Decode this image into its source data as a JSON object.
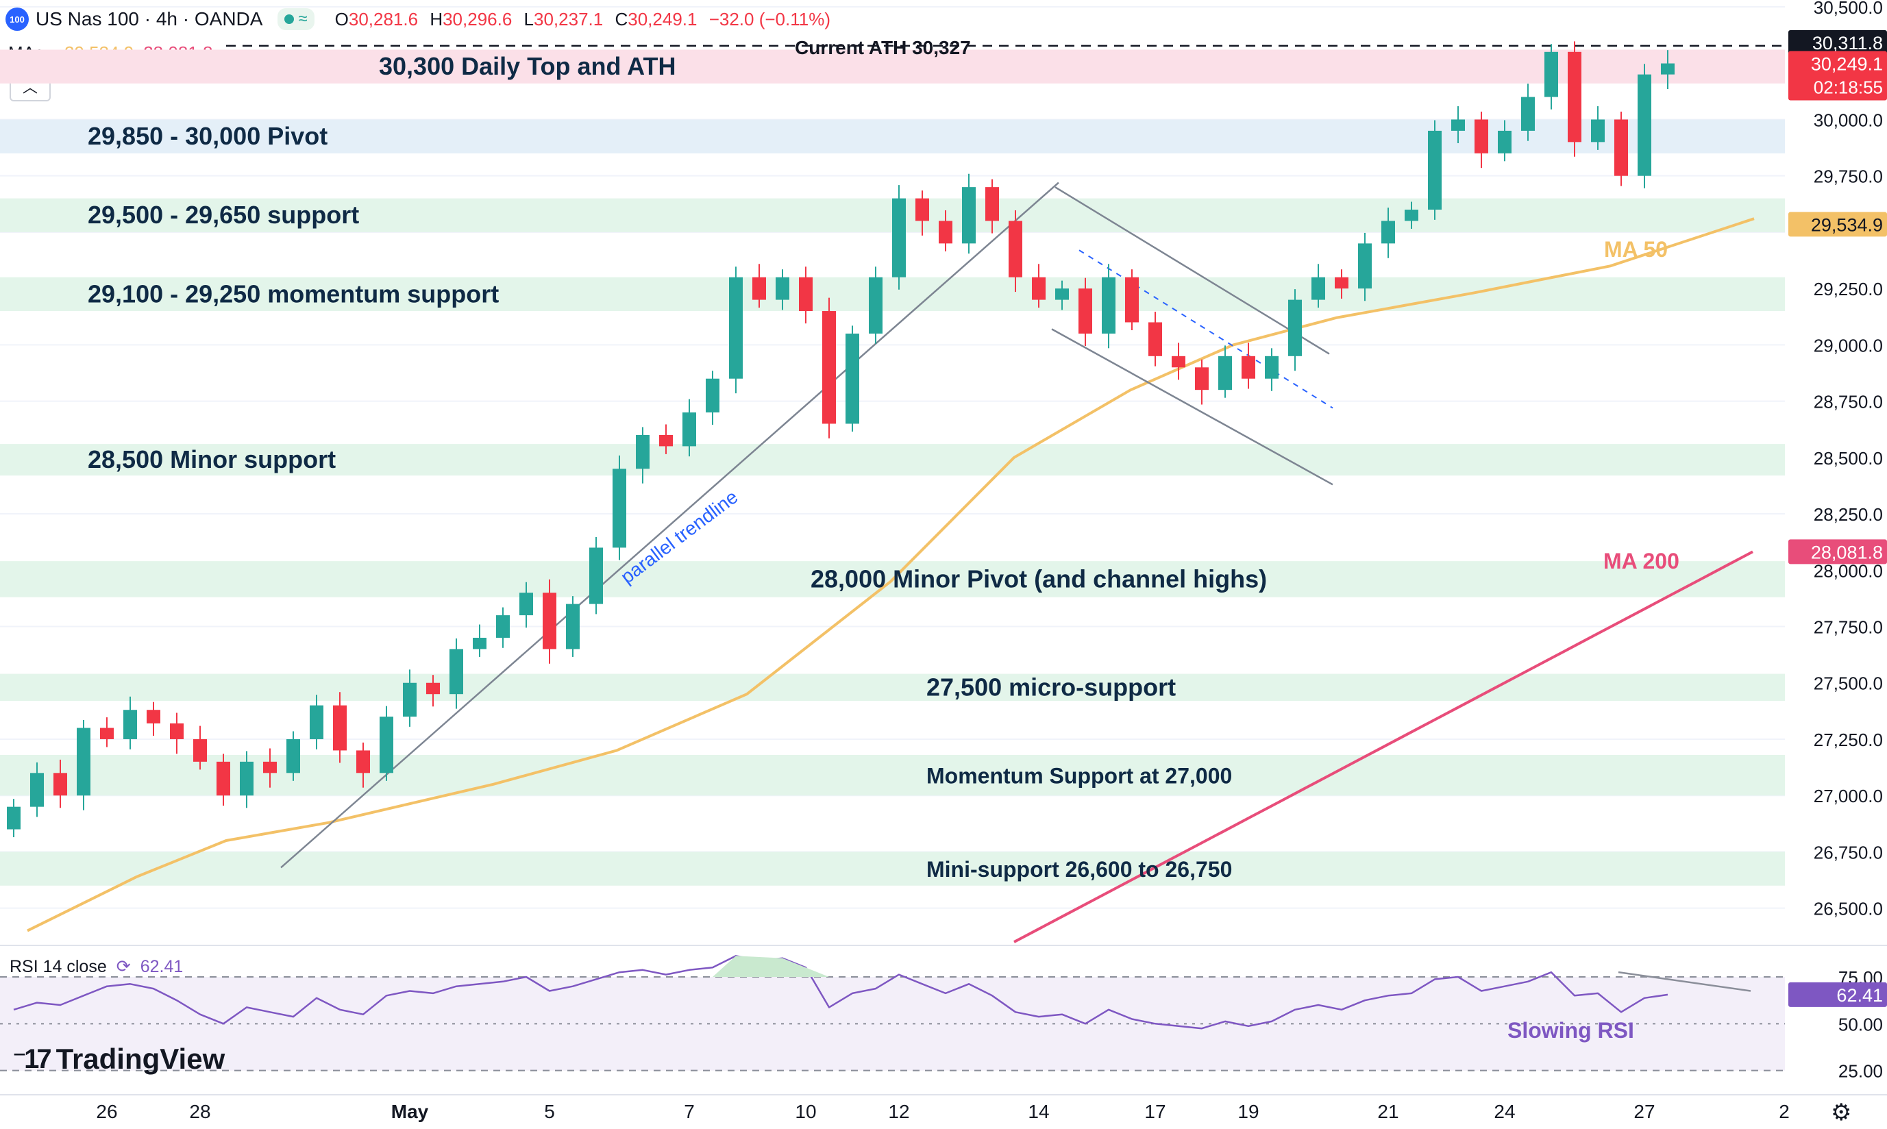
{
  "header": {
    "logo_text": "100",
    "symbol": "US Nas 100 · 4h · OANDA",
    "open_label": "O",
    "open": "30,281.6",
    "high_label": "H",
    "high": "30,296.6",
    "low_label": "L",
    "low": "30,237.1",
    "close_label": "C",
    "close": "30,249.1",
    "change": "−32.0 (−0.11%)"
  },
  "mas_legend": {
    "label": "MAs",
    "ma50_value": "29,534.9",
    "ma200_value": "28,081.8"
  },
  "rsi_legend": {
    "label": "RSI 14 close",
    "value": "62.41"
  },
  "branding": {
    "name": "TradingView"
  },
  "colors": {
    "up": "#26a69a",
    "down": "#f23645",
    "ma50": "#f3c167",
    "ma200": "#e84d7a",
    "rsi": "#7e57c2",
    "green_band": "#e3f5ea",
    "blue_band": "#e4eff8",
    "pink_band": "#fbe0e8",
    "annotation_text": "#0f2a45",
    "trendline": "#7d8592"
  },
  "chart_data": [
    {
      "type": "candlestick",
      "symbol": "US Nas 100",
      "timeframe": "4h",
      "ylim": [
        26350,
        30500
      ],
      "y_ticks": [
        30500,
        30250,
        30000,
        29750,
        29500,
        29250,
        29000,
        28750,
        28500,
        28250,
        28000,
        27750,
        27500,
        27250,
        27000,
        26750,
        26500
      ],
      "y_tick_labels": [
        "30,500.0",
        "",
        "30,000.0",
        "29,750.0",
        "",
        "29,250.0",
        "29,000.0",
        "28,750.0",
        "28,500.0",
        "28,250.0",
        "28,000.0",
        "27,750.0",
        "27,500.0",
        "27,250.0",
        "27,000.0",
        "26,750.0",
        "26,500.0"
      ],
      "x_tick_labels": [
        {
          "label": "26",
          "bar": 4
        },
        {
          "label": "28",
          "bar": 8
        },
        {
          "label": "May",
          "bar": 17
        },
        {
          "label": "5",
          "bar": 23
        },
        {
          "label": "7",
          "bar": 29
        },
        {
          "label": "10",
          "bar": 34
        },
        {
          "label": "12",
          "bar": 38
        },
        {
          "label": "14",
          "bar": 44
        },
        {
          "label": "17",
          "bar": 49
        },
        {
          "label": "19",
          "bar": 53
        },
        {
          "label": "21",
          "bar": 59
        },
        {
          "label": "24",
          "bar": 64
        },
        {
          "label": "27",
          "bar": 70
        },
        {
          "label": "2",
          "bar": 76
        }
      ],
      "closes": [
        26950,
        27100,
        27000,
        27300,
        27250,
        27380,
        27320,
        27250,
        27150,
        27000,
        27150,
        27100,
        27250,
        27400,
        27200,
        27100,
        27350,
        27500,
        27450,
        27650,
        27700,
        27800,
        27900,
        27650,
        27850,
        28100,
        28450,
        28600,
        28550,
        28700,
        28850,
        29300,
        29200,
        29300,
        29150,
        28650,
        29050,
        29300,
        29650,
        29550,
        29450,
        29700,
        29550,
        29300,
        29200,
        29250,
        29050,
        29300,
        29100,
        28950,
        28900,
        28800,
        28950,
        28850,
        28950,
        29200,
        29300,
        29250,
        29450,
        29550,
        29600,
        29950,
        30000,
        29850,
        29950,
        30100,
        30300,
        29900,
        30000,
        29750,
        30200,
        30249
      ],
      "annotations": [
        {
          "text": "30,300 Daily Top and ATH",
          "low": 30160,
          "high": 30310
        },
        {
          "text": "Current ATH 30,327",
          "level": 30327
        },
        {
          "text": "29,850 - 30,000 Pivot",
          "low": 29850,
          "high": 30000
        },
        {
          "text": "29,500 - 29,650 support",
          "low": 29500,
          "high": 29650
        },
        {
          "text": "29,100 - 29,250 momentum support",
          "low": 29150,
          "high": 29300
        },
        {
          "text": "28,500 Minor support",
          "low": 28420,
          "high": 28560
        },
        {
          "text": "28,000 Minor Pivot (and channel highs)",
          "low": 27880,
          "high": 28040
        },
        {
          "text": "27,500 micro-support",
          "low": 27420,
          "high": 27540
        },
        {
          "text": "Momentum Support at 27,000",
          "low": 27000,
          "high": 27180
        },
        {
          "text": "Mini-support 26,600 to 26,750",
          "low": 26600,
          "high": 26750
        },
        {
          "text": "parallel trendline"
        },
        {
          "text": "MA 50"
        },
        {
          "text": "MA 200"
        }
      ],
      "ma50": {
        "label": "MA 50",
        "value": 29534.9,
        "value_label": "29,534.9"
      },
      "ma200": {
        "label": "MA 200",
        "value": 28081.8,
        "value_label": "28,081.8"
      },
      "price_labels": {
        "high": "30,311.8",
        "last": "30,249.1",
        "countdown": "02:18:55"
      }
    },
    {
      "type": "line",
      "name": "RSI 14 close",
      "ylim": [
        22,
        82
      ],
      "y_tick_labels": [
        "75.00",
        "50.00",
        "25.00"
      ],
      "values": [
        56,
        59,
        58,
        62,
        66,
        67,
        65,
        60,
        54,
        50,
        57,
        55,
        53,
        61,
        56,
        54,
        62,
        64,
        63,
        66,
        67,
        68,
        70,
        64,
        66,
        69,
        72,
        73,
        71,
        73,
        74,
        79,
        77,
        78,
        74,
        57,
        63,
        65,
        71,
        67,
        63,
        67,
        62,
        55,
        53,
        54,
        50,
        56,
        52,
        50,
        49,
        48,
        51,
        49,
        51,
        56,
        58,
        56,
        60,
        62,
        63,
        69,
        70,
        64,
        66,
        68,
        72,
        62,
        63,
        55,
        61,
        62.41
      ],
      "last_label": "62.41",
      "annotation": "Slowing RSI"
    }
  ]
}
